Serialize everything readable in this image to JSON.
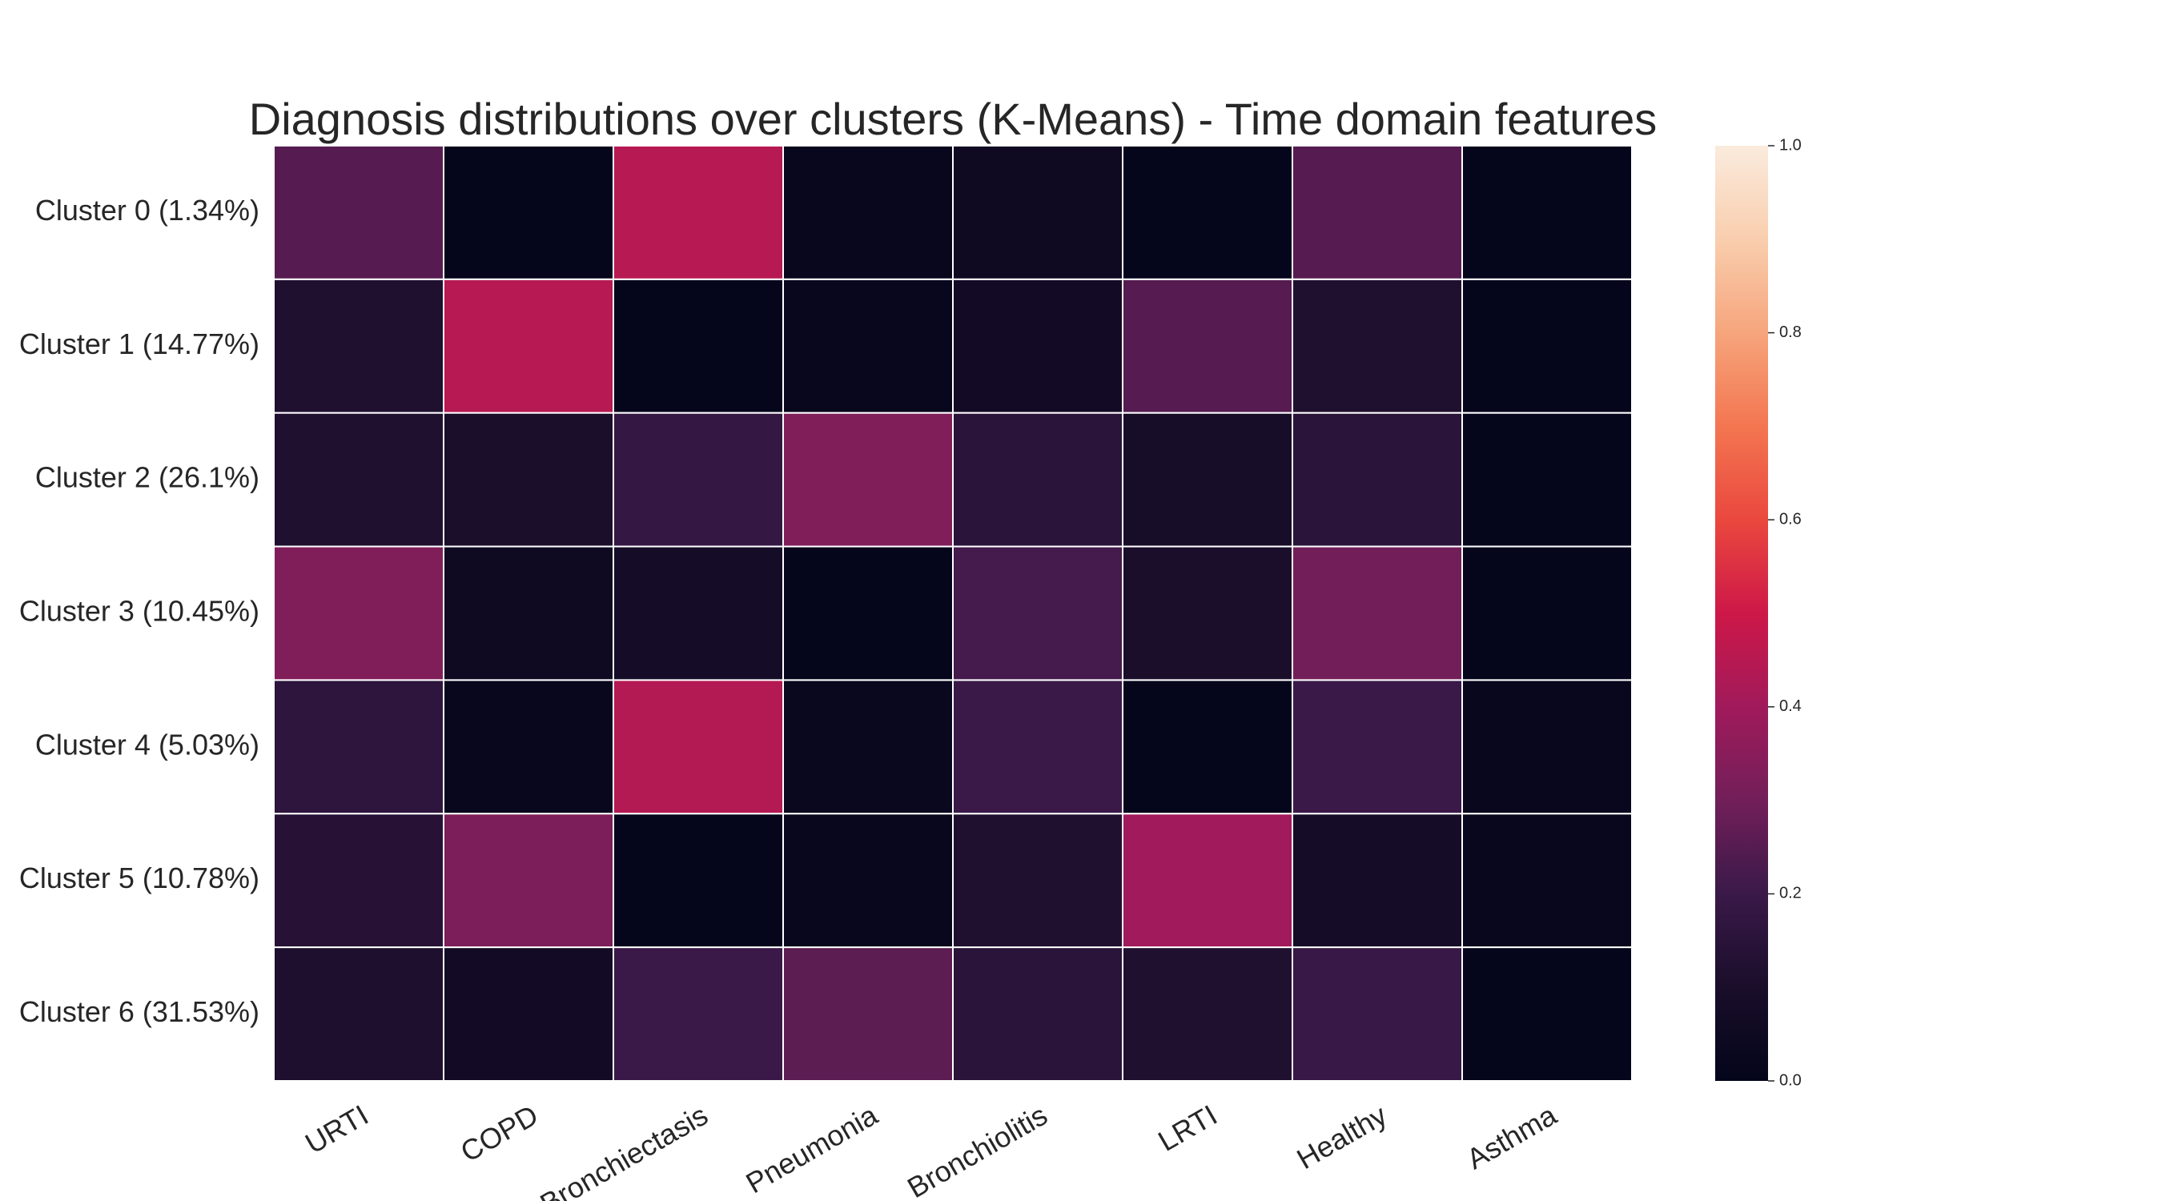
{
  "chart_data": {
    "type": "heatmap",
    "title": "Diagnosis distributions over clusters (K-Means) - Time domain features",
    "rows": [
      "Cluster 0 (1.34%)",
      "Cluster 1 (14.77%)",
      "Cluster 2 (26.1%)",
      "Cluster 3 (10.45%)",
      "Cluster 4 (5.03%)",
      "Cluster 5 (10.78%)",
      "Cluster 6 (31.53%)"
    ],
    "columns": [
      "URTI",
      "COPD",
      "Bronchiectasis",
      "Pneumonia",
      "Bronchiolitis",
      "LRTI",
      "Healthy",
      "Asthma"
    ],
    "values": [
      [
        0.25,
        0.01,
        0.45,
        0.02,
        0.05,
        0.01,
        0.25,
        0.01
      ],
      [
        0.12,
        0.45,
        0.01,
        0.02,
        0.07,
        0.25,
        0.12,
        0.01
      ],
      [
        0.12,
        0.1,
        0.18,
        0.33,
        0.15,
        0.09,
        0.15,
        0.01
      ],
      [
        0.33,
        0.05,
        0.08,
        0.01,
        0.22,
        0.1,
        0.3,
        0.01
      ],
      [
        0.16,
        0.02,
        0.44,
        0.03,
        0.2,
        0.01,
        0.2,
        0.02
      ],
      [
        0.14,
        0.32,
        0.01,
        0.02,
        0.12,
        0.4,
        0.08,
        0.02
      ],
      [
        0.11,
        0.07,
        0.2,
        0.26,
        0.15,
        0.12,
        0.19,
        0.01
      ]
    ],
    "vmin": 0,
    "vmax": 1,
    "colormap": "rocket",
    "colorbar_ticks": [
      "0.0",
      "0.2",
      "0.4",
      "0.6",
      "0.8",
      "1.0"
    ],
    "colorbar_tick_values": [
      0,
      0.2,
      0.4,
      0.6,
      0.8,
      1.0
    ],
    "cell_borders": "#ffffff"
  }
}
